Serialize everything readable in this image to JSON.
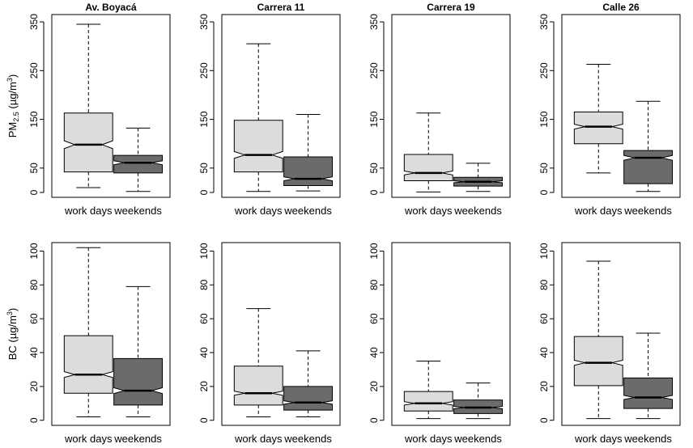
{
  "chart_data": [
    {
      "type": "boxplot",
      "title": "Av. Boyacá",
      "ylabel": "PM2.5 (µg/m³)",
      "ylabel_parts": {
        "main": "PM",
        "sub": "2.5",
        "unit_open": " (µg/m",
        "sup": "3",
        "unit_close": ")"
      },
      "ylim": [
        -10,
        365
      ],
      "yticks": [
        0,
        50,
        150,
        250,
        350
      ],
      "categories": [
        "work days",
        "weekends"
      ],
      "colors": [
        "#dcdcdc",
        "#6b6b6b"
      ],
      "boxes": [
        {
          "min": 10,
          "q1": 42,
          "median": 98,
          "q3": 163,
          "max": 345,
          "notch": [
            90,
            106
          ]
        },
        {
          "min": 2,
          "q1": 40,
          "median": 61,
          "q3": 76,
          "max": 132,
          "notch": [
            57,
            65
          ]
        }
      ]
    },
    {
      "type": "boxplot",
      "title": "Carrera 11",
      "ylim": [
        -10,
        365
      ],
      "yticks": [
        0,
        50,
        150,
        250,
        350
      ],
      "categories": [
        "work days",
        "weekends"
      ],
      "colors": [
        "#dcdcdc",
        "#6b6b6b"
      ],
      "boxes": [
        {
          "min": 2,
          "q1": 42,
          "median": 77,
          "q3": 148,
          "max": 305,
          "notch": [
            70,
            84
          ]
        },
        {
          "min": 3,
          "q1": 14,
          "median": 28,
          "q3": 73,
          "max": 160,
          "notch": [
            24,
            32
          ]
        }
      ]
    },
    {
      "type": "boxplot",
      "title": "Carrera 19",
      "ylim": [
        -10,
        365
      ],
      "yticks": [
        0,
        50,
        150,
        250,
        350
      ],
      "categories": [
        "work days",
        "weekends"
      ],
      "colors": [
        "#dcdcdc",
        "#6b6b6b"
      ],
      "boxes": [
        {
          "min": 1,
          "q1": 24,
          "median": 40,
          "q3": 78,
          "max": 163,
          "notch": [
            36,
            44
          ]
        },
        {
          "min": 2,
          "q1": 13,
          "median": 22,
          "q3": 31,
          "max": 60,
          "notch": [
            20,
            24
          ]
        }
      ]
    },
    {
      "type": "boxplot",
      "title": "Calle 26",
      "ylim": [
        -10,
        365
      ],
      "yticks": [
        0,
        50,
        150,
        250,
        350
      ],
      "categories": [
        "work days",
        "weekends"
      ],
      "colors": [
        "#dcdcdc",
        "#6b6b6b"
      ],
      "boxes": [
        {
          "min": 40,
          "q1": 100,
          "median": 135,
          "q3": 165,
          "max": 263,
          "notch": [
            130,
            140
          ]
        },
        {
          "min": 2,
          "q1": 18,
          "median": 71,
          "q3": 86,
          "max": 187,
          "notch": [
            66,
            76
          ]
        }
      ]
    },
    {
      "type": "boxplot",
      "title": "",
      "ylabel": "BC (µg/m³)",
      "ylabel_parts": {
        "main": "BC",
        "sub": "",
        "unit_open": " (µg/m",
        "sup": "3",
        "unit_close": ")"
      },
      "ylim": [
        -3,
        105
      ],
      "yticks": [
        0,
        20,
        40,
        60,
        80,
        100
      ],
      "categories": [
        "work days",
        "weekends"
      ],
      "colors": [
        "#dcdcdc",
        "#6b6b6b"
      ],
      "boxes": [
        {
          "min": 2,
          "q1": 16,
          "median": 27,
          "q3": 50,
          "max": 102,
          "notch": [
            25.3,
            28.7
          ]
        },
        {
          "min": 2,
          "q1": 9,
          "median": 17.5,
          "q3": 36.5,
          "max": 79,
          "notch": [
            15.8,
            19.2
          ]
        }
      ]
    },
    {
      "type": "boxplot",
      "title": "",
      "ylim": [
        -3,
        105
      ],
      "yticks": [
        0,
        20,
        40,
        60,
        80,
        100
      ],
      "categories": [
        "work days",
        "weekends"
      ],
      "colors": [
        "#dcdcdc",
        "#6b6b6b"
      ],
      "boxes": [
        {
          "min": 2,
          "q1": 9,
          "median": 16,
          "q3": 32,
          "max": 66,
          "notch": [
            14.8,
            17.2
          ]
        },
        {
          "min": 2,
          "q1": 6,
          "median": 10.5,
          "q3": 20,
          "max": 41,
          "notch": [
            9.5,
            11.5
          ]
        }
      ]
    },
    {
      "type": "boxplot",
      "title": "",
      "ylim": [
        -3,
        105
      ],
      "yticks": [
        0,
        20,
        40,
        60,
        80,
        100
      ],
      "categories": [
        "work days",
        "weekends"
      ],
      "colors": [
        "#dcdcdc",
        "#6b6b6b"
      ],
      "boxes": [
        {
          "min": 1,
          "q1": 5.5,
          "median": 10,
          "q3": 17,
          "max": 35,
          "notch": [
            9,
            11
          ]
        },
        {
          "min": 1,
          "q1": 4,
          "median": 7.5,
          "q3": 12,
          "max": 22,
          "notch": [
            6.8,
            8.2
          ]
        }
      ]
    },
    {
      "type": "boxplot",
      "title": "",
      "ylim": [
        -3,
        105
      ],
      "yticks": [
        0,
        20,
        40,
        60,
        80,
        100
      ],
      "categories": [
        "work days",
        "weekends"
      ],
      "colors": [
        "#dcdcdc",
        "#6b6b6b"
      ],
      "boxes": [
        {
          "min": 1,
          "q1": 20.5,
          "median": 34,
          "q3": 49.5,
          "max": 94,
          "notch": [
            32.5,
            35.5
          ]
        },
        {
          "min": 1,
          "q1": 7,
          "median": 13.5,
          "q3": 25,
          "max": 51.5,
          "notch": [
            12.3,
            14.7
          ]
        }
      ]
    }
  ]
}
